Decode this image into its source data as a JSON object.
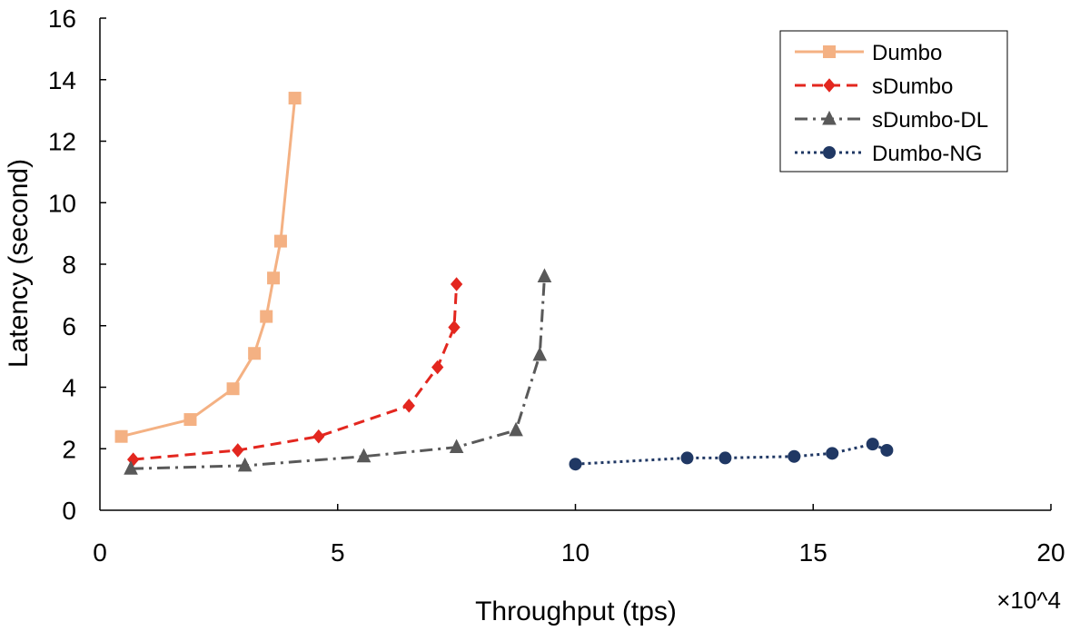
{
  "chart_data": {
    "type": "line",
    "title": "",
    "xlabel": "Throughput (tps)",
    "ylabel": "Latency (second)",
    "x_multiplier_label": "×10^4",
    "xlim": [
      0,
      20
    ],
    "ylim": [
      0,
      16
    ],
    "xticks": [
      0,
      5,
      10,
      15,
      20
    ],
    "yticks": [
      0,
      2,
      4,
      6,
      8,
      10,
      12,
      14,
      16
    ],
    "grid": false,
    "legend_position": "top-right",
    "series": [
      {
        "name": "Dumbo",
        "color": "#F4B183",
        "line_style": "solid",
        "marker": "square",
        "x": [
          0.45,
          1.9,
          2.8,
          3.25,
          3.5,
          3.65,
          3.8,
          4.1
        ],
        "y": [
          2.4,
          2.95,
          3.95,
          5.1,
          6.3,
          7.55,
          8.75,
          13.4
        ]
      },
      {
        "name": "sDumbo",
        "color": "#E3271F",
        "line_style": "dashed",
        "marker": "diamond",
        "x": [
          0.7,
          2.9,
          4.6,
          6.5,
          7.1,
          7.45,
          7.5
        ],
        "y": [
          1.65,
          1.95,
          2.4,
          3.4,
          4.65,
          5.95,
          7.35
        ]
      },
      {
        "name": "sDumbo-DL",
        "color": "#595959",
        "line_style": "dashdot",
        "marker": "triangle",
        "x": [
          0.65,
          3.05,
          5.55,
          7.5,
          8.75,
          9.25,
          9.35
        ],
        "y": [
          1.35,
          1.45,
          1.75,
          2.05,
          2.6,
          5.05,
          7.6
        ]
      },
      {
        "name": "Dumbo-NG",
        "color": "#203864",
        "line_style": "dotted",
        "marker": "circle",
        "x": [
          10.0,
          12.35,
          13.15,
          14.6,
          15.4,
          16.25,
          16.55
        ],
        "y": [
          1.5,
          1.7,
          1.7,
          1.75,
          1.85,
          2.15,
          1.95
        ]
      }
    ]
  }
}
